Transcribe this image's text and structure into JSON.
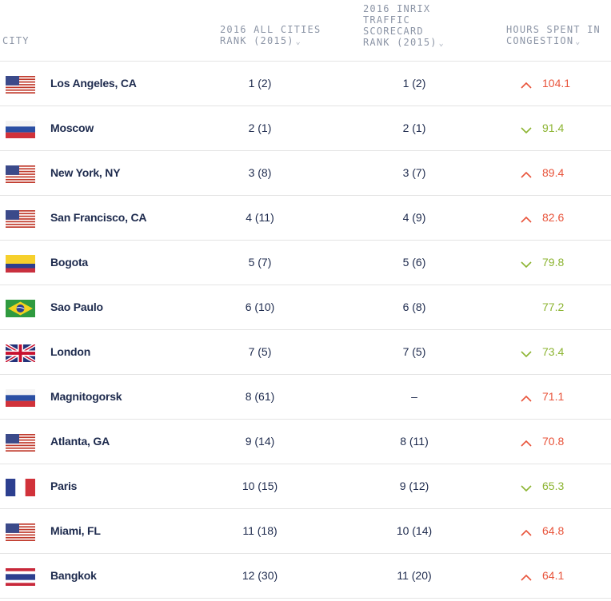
{
  "header": {
    "city": "CITY",
    "rank_all": [
      "2016 ALL CITIES",
      "RANK (2015)"
    ],
    "rank_inrix": [
      "2016 INRIX",
      "TRAFFIC",
      "SCORECARD",
      "RANK (2015)"
    ],
    "hours": [
      "HOURS SPENT IN",
      "CONGESTION"
    ],
    "sort_icon": "chevron-down-icon"
  },
  "colors": {
    "up": "#e8533a",
    "down": "#8cb431",
    "text": "#1d2a4d",
    "header": "#8c95a6"
  },
  "rows": [
    {
      "flag": "usa-flag-icon",
      "city": "Los Angeles, CA",
      "rank_all": "1 (2)",
      "rank_inrix": "1 (2)",
      "trend": "up",
      "hours": "104.1"
    },
    {
      "flag": "russia-flag-icon",
      "city": "Moscow",
      "rank_all": "2 (1)",
      "rank_inrix": "2 (1)",
      "trend": "down",
      "hours": "91.4"
    },
    {
      "flag": "usa-flag-icon",
      "city": "New York, NY",
      "rank_all": "3 (8)",
      "rank_inrix": "3 (7)",
      "trend": "up",
      "hours": "89.4"
    },
    {
      "flag": "usa-flag-icon",
      "city": "San Francisco, CA",
      "rank_all": "4 (11)",
      "rank_inrix": "4 (9)",
      "trend": "up",
      "hours": "82.6"
    },
    {
      "flag": "colombia-flag-icon",
      "city": "Bogota",
      "rank_all": "5 (7)",
      "rank_inrix": "5 (6)",
      "trend": "down",
      "hours": "79.8"
    },
    {
      "flag": "brazil-flag-icon",
      "city": "Sao Paulo",
      "rank_all": "6 (10)",
      "rank_inrix": "6 (8)",
      "trend": "none",
      "hours": "77.2"
    },
    {
      "flag": "uk-flag-icon",
      "city": "London",
      "rank_all": "7 (5)",
      "rank_inrix": "7 (5)",
      "trend": "down",
      "hours": "73.4"
    },
    {
      "flag": "russia-flag-icon",
      "city": "Magnitogorsk",
      "rank_all": "8 (61)",
      "rank_inrix": "–",
      "trend": "up",
      "hours": "71.1"
    },
    {
      "flag": "usa-flag-icon",
      "city": "Atlanta, GA",
      "rank_all": "9 (14)",
      "rank_inrix": "8 (11)",
      "trend": "up",
      "hours": "70.8"
    },
    {
      "flag": "france-flag-icon",
      "city": "Paris",
      "rank_all": "10 (15)",
      "rank_inrix": "9 (12)",
      "trend": "down",
      "hours": "65.3"
    },
    {
      "flag": "usa-flag-icon",
      "city": "Miami, FL",
      "rank_all": "11 (18)",
      "rank_inrix": "10 (14)",
      "trend": "up",
      "hours": "64.8"
    },
    {
      "flag": "thailand-flag-icon",
      "city": "Bangkok",
      "rank_all": "12 (30)",
      "rank_inrix": "11 (20)",
      "trend": "up",
      "hours": "64.1"
    }
  ]
}
